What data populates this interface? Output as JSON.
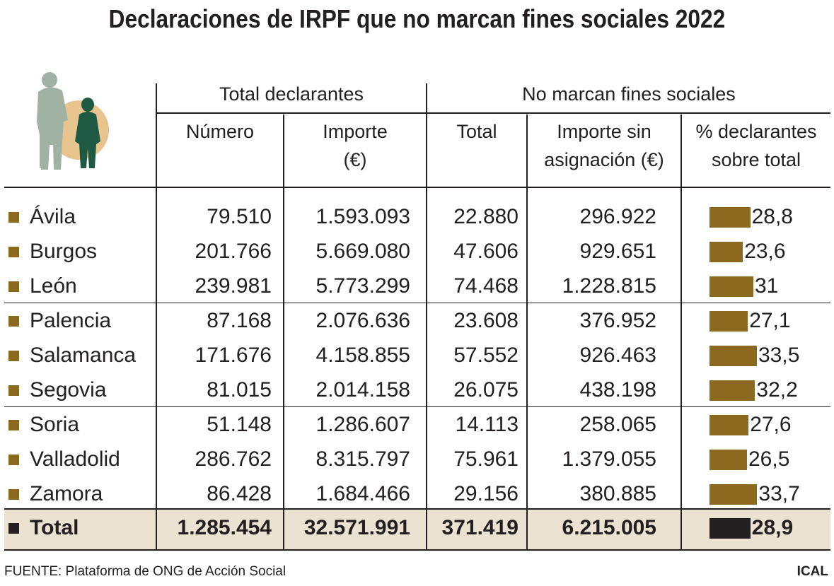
{
  "title": "Declaraciones de IRPF que no marcan fines sociales 2022",
  "headers": {
    "group1": "Total declarantes",
    "group2": "No marcan fines sociales",
    "col_numero": "Número",
    "col_importe_l1": "Importe",
    "col_importe_l2": "(€)",
    "col_total": "Total",
    "col_importe_sin_l1": "Importe sin",
    "col_importe_sin_l2": "asignación (€)",
    "col_pct_l1": "% declarantes",
    "col_pct_l2": "sobre total"
  },
  "colors": {
    "bar": "#8b6a1f",
    "total_bar": "#231f20",
    "total_band": "#ece2d2",
    "illustration_circle": "#e8c48e",
    "illustration_adult": "#9fb2a3",
    "illustration_child": "#1e5a43"
  },
  "illustration_icon": "elderly-and-child-icon",
  "chart_data": {
    "type": "table",
    "columns": [
      "Número",
      "Importe (€)",
      "Total",
      "Importe sin asignación (€)",
      "% declarantes sobre total"
    ],
    "rows": [
      {
        "province": "Ávila",
        "numero": "79.510",
        "importe": "1.593.093",
        "total": "22.880",
        "importe_sin": "296.922",
        "pct_label": "28,8",
        "pct": 28.8
      },
      {
        "province": "Burgos",
        "numero": "201.766",
        "importe": "5.669.080",
        "total": "47.606",
        "importe_sin": "929.651",
        "pct_label": "23,6",
        "pct": 23.6
      },
      {
        "province": "León",
        "numero": "239.981",
        "importe": "5.773.299",
        "total": "74.468",
        "importe_sin": "1.228.815",
        "pct_label": "31",
        "pct": 31
      },
      {
        "province": "Palencia",
        "numero": "87.168",
        "importe": "2.076.636",
        "total": "23.608",
        "importe_sin": "376.952",
        "pct_label": "27,1",
        "pct": 27.1
      },
      {
        "province": "Salamanca",
        "numero": "171.676",
        "importe": "4.158.855",
        "total": "57.552",
        "importe_sin": "926.463",
        "pct_label": "33,5",
        "pct": 33.5
      },
      {
        "province": "Segovia",
        "numero": "81.015",
        "importe": "2.014.158",
        "total": "26.075",
        "importe_sin": "438.198",
        "pct_label": "32,2",
        "pct": 32.2
      },
      {
        "province": "Soria",
        "numero": "51.148",
        "importe": "1.286.607",
        "total": "14.113",
        "importe_sin": "258.065",
        "pct_label": "27,6",
        "pct": 27.6
      },
      {
        "province": "Valladolid",
        "numero": "286.762",
        "importe": "8.315.797",
        "total": "75.961",
        "importe_sin": "1.379.055",
        "pct_label": "26,5",
        "pct": 26.5
      },
      {
        "province": "Zamora",
        "numero": "86.428",
        "importe": "1.684.466",
        "total": "29.156",
        "importe_sin": "380.885",
        "pct_label": "33,7",
        "pct": 33.7
      }
    ],
    "total": {
      "province": "Total",
      "numero": "1.285.454",
      "importe": "32.571.991",
      "total": "371.419",
      "importe_sin": "6.215.005",
      "pct_label": "28,9",
      "pct": 28.9
    }
  },
  "footer": {
    "source": "FUENTE: Plataforma de ONG de Acción Social",
    "agency": "ICAL"
  }
}
